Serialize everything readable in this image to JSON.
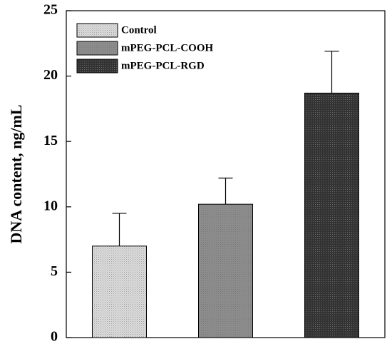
{
  "chart_data": {
    "type": "bar",
    "title": "",
    "xlabel": "",
    "ylabel": "DNA content, ng/mL",
    "ylim": [
      0,
      25
    ],
    "yticks": [
      0,
      5,
      10,
      15,
      20,
      25
    ],
    "grid": false,
    "legend_position": "top-left",
    "series": [
      {
        "name": "Control",
        "value": 7.0,
        "error": 2.5,
        "color": "#d4d4d4",
        "pattern": "light-dotted"
      },
      {
        "name": "mPEG-PCL-COOH",
        "value": 10.2,
        "error": 2.0,
        "color": "#8a8a8a",
        "pattern": "medium-gray"
      },
      {
        "name": "mPEG-PCL-RGD",
        "value": 18.7,
        "error": 3.2,
        "color": "#3a3a3a",
        "pattern": "dark-dotted"
      }
    ]
  }
}
